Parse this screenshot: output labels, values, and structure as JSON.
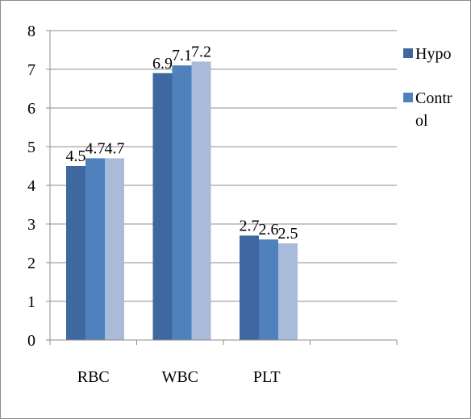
{
  "chart_data": {
    "type": "bar",
    "title": "",
    "xlabel": "",
    "ylabel": "",
    "categories": [
      "RBC",
      "WBC",
      "PLT"
    ],
    "extra_empty_category_slot": true,
    "ylim": [
      0,
      8
    ],
    "yticks": [
      "0",
      "1",
      "2",
      "3",
      "4",
      "5",
      "6",
      "7",
      "8"
    ],
    "grid": "horizontal",
    "legend_position": "top-right",
    "series": [
      {
        "name": "Hypo",
        "values": [
          4.5,
          6.9,
          2.7
        ],
        "labels": [
          "4.5",
          "6.9",
          "2.7"
        ],
        "color": "#3f68a0"
      },
      {
        "name": "Control",
        "legend_lines": [
          "Contr",
          "ol"
        ],
        "values": [
          4.7,
          7.1,
          2.6
        ],
        "labels": [
          "4.7",
          "7.1",
          "2.6"
        ],
        "color": "#4f81bd"
      },
      {
        "values": [
          4.7,
          7.2,
          2.5
        ],
        "labels": [
          "4.7",
          "7.2",
          "2.5"
        ],
        "color": "#a9bbd9"
      }
    ]
  }
}
